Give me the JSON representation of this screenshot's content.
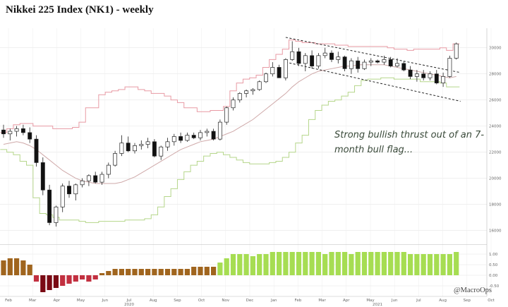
{
  "chart_data": [
    {
      "type": "candlestick",
      "title": "Nikkei 225 Index (NK1) - weekly",
      "annotation": "Strong bullish thrust out of an 7-month bull flag...",
      "x_tick_labels": [
        "Feb",
        "Mar",
        "Apr",
        "May",
        "Jun",
        "Jul",
        "Aug",
        "Sep",
        "Oct",
        "Nov",
        "Dec",
        "Jan",
        "Feb",
        "Mar",
        "Apr",
        "May",
        "Jun",
        "Jul",
        "Aug",
        "Sep",
        "Oct"
      ],
      "year_labels": [
        "2020",
        "2021"
      ],
      "y_tick_labels": [
        "30000",
        "28000",
        "26000",
        "24000",
        "22000",
        "20000",
        "18000",
        "16000"
      ],
      "ylim": [
        15000,
        31500
      ],
      "grid": true,
      "ohlc": [
        [
          23700,
          24100,
          23100,
          23400
        ],
        [
          23400,
          23800,
          22900,
          23600
        ],
        [
          23600,
          24000,
          23200,
          23800
        ],
        [
          23800,
          24100,
          23300,
          23500
        ],
        [
          23500,
          23900,
          22700,
          23000
        ],
        [
          23000,
          23300,
          20900,
          21200
        ],
        [
          21200,
          21600,
          18700,
          19100
        ],
        [
          19100,
          19500,
          16400,
          16600
        ],
        [
          16600,
          17900,
          16300,
          17800
        ],
        [
          17800,
          19600,
          17400,
          19400
        ],
        [
          19400,
          19800,
          18500,
          18800
        ],
        [
          18800,
          19600,
          18300,
          19500
        ],
        [
          19500,
          20000,
          19300,
          19800
        ],
        [
          19800,
          20300,
          19400,
          20200
        ],
        [
          20200,
          20500,
          19600,
          19700
        ],
        [
          19700,
          20500,
          19500,
          20300
        ],
        [
          20300,
          21200,
          20000,
          21000
        ],
        [
          21000,
          22100,
          20900,
          21900
        ],
        [
          21900,
          23300,
          21700,
          22700
        ],
        [
          22700,
          23200,
          22000,
          22100
        ],
        [
          22100,
          22700,
          21900,
          22500
        ],
        [
          22500,
          22900,
          22200,
          22600
        ],
        [
          22600,
          23100,
          22300,
          22800
        ],
        [
          22800,
          23000,
          21600,
          21700
        ],
        [
          21700,
          22500,
          21400,
          22400
        ],
        [
          22400,
          23100,
          22100,
          22800
        ],
        [
          22800,
          23400,
          22500,
          23200
        ],
        [
          23200,
          23500,
          22700,
          22900
        ],
        [
          22900,
          23500,
          22800,
          23300
        ],
        [
          23300,
          23500,
          23000,
          23100
        ],
        [
          23100,
          23700,
          22900,
          23500
        ],
        [
          23500,
          23800,
          23200,
          23600
        ],
        [
          23600,
          23800,
          22900,
          23000
        ],
        [
          23000,
          24500,
          22900,
          24300
        ],
        [
          24300,
          25500,
          24100,
          25400
        ],
        [
          25400,
          26200,
          25200,
          26000
        ],
        [
          26000,
          26600,
          25800,
          26500
        ],
        [
          26500,
          26800,
          26200,
          26700
        ],
        [
          26700,
          26900,
          26400,
          26800
        ],
        [
          26800,
          27500,
          26700,
          27400
        ],
        [
          27400,
          28100,
          27300,
          28000
        ],
        [
          28000,
          28900,
          27800,
          28500
        ],
        [
          28500,
          28700,
          27700,
          27700
        ],
        [
          27700,
          29200,
          27500,
          29100
        ],
        [
          29100,
          30500,
          29000,
          29700
        ],
        [
          29700,
          30000,
          28600,
          28800
        ],
        [
          28800,
          29600,
          28200,
          29400
        ],
        [
          29400,
          29800,
          28400,
          28600
        ],
        [
          28600,
          29600,
          28400,
          29400
        ],
        [
          29400,
          30000,
          29200,
          29600
        ],
        [
          29600,
          29800,
          28900,
          29100
        ],
        [
          29100,
          29700,
          28800,
          29300
        ],
        [
          29300,
          29400,
          28200,
          28400
        ],
        [
          28400,
          29200,
          28000,
          29000
        ],
        [
          29000,
          29300,
          28100,
          28400
        ],
        [
          28400,
          29100,
          28300,
          28900
        ],
        [
          28900,
          29200,
          28600,
          29000
        ],
        [
          29000,
          29100,
          28800,
          28900
        ],
        [
          28900,
          29400,
          28700,
          29100
        ],
        [
          29100,
          29300,
          28500,
          28600
        ],
        [
          28600,
          29200,
          28500,
          28800
        ],
        [
          28800,
          29000,
          28200,
          28300
        ],
        [
          28300,
          28600,
          27600,
          27800
        ],
        [
          27800,
          28300,
          27400,
          28000
        ],
        [
          28000,
          28300,
          27500,
          27700
        ],
        [
          27700,
          28200,
          27500,
          28000
        ],
        [
          28000,
          28300,
          27200,
          27300
        ],
        [
          27300,
          28100,
          27000,
          27800
        ],
        [
          27800,
          29400,
          27700,
          29200
        ],
        [
          29200,
          30400,
          29100,
          30300
        ]
      ],
      "series": [
        {
          "name": "upper_band",
          "color": "#e89aa4",
          "values": [
            23500,
            23800,
            24100,
            24200,
            24200,
            24000,
            24000,
            24000,
            23800,
            23800,
            23800,
            23900,
            24300,
            25400,
            25400,
            26400,
            26600,
            26700,
            26800,
            27000,
            27000,
            26800,
            26700,
            26500,
            26500,
            26300,
            26000,
            25800,
            25400,
            25400,
            25100,
            25100,
            25200,
            25200,
            25500,
            26700,
            27300,
            27600,
            27700,
            27900,
            28500,
            29100,
            29500,
            29900,
            30600,
            30500,
            30400,
            30400,
            30300,
            30300,
            30300,
            30200,
            30200,
            30100,
            30100,
            30100,
            30100,
            30100,
            30100,
            30000,
            29900,
            29900,
            29800,
            29900,
            29900,
            29900,
            29900,
            30000,
            29800,
            30300
          ]
        },
        {
          "name": "lower_band",
          "color": "#b5d68a",
          "values": [
            22200,
            22000,
            21800,
            21300,
            21000,
            18500,
            17300,
            17200,
            17000,
            16800,
            16800,
            16800,
            16700,
            16600,
            16600,
            16700,
            16700,
            16700,
            16700,
            16800,
            16800,
            16800,
            16900,
            17200,
            17800,
            18600,
            19200,
            19900,
            20500,
            21000,
            21300,
            21700,
            21900,
            22000,
            21800,
            21600,
            21400,
            21200,
            21100,
            21100,
            21100,
            21200,
            21300,
            21600,
            22000,
            22700,
            23300,
            24500,
            25200,
            25600,
            25900,
            26000,
            26300,
            26600,
            27100,
            27500,
            27600,
            27600,
            27700,
            27700,
            27600,
            27600,
            27600,
            27600,
            27400,
            27400,
            27400,
            27300,
            27000,
            27000
          ]
        },
        {
          "name": "moving_average",
          "color": "#cfa9a9",
          "values": [
            22600,
            22700,
            22800,
            22700,
            22500,
            22200,
            21800,
            21400,
            21000,
            20600,
            20300,
            20000,
            19800,
            19700,
            19600,
            19600,
            19600,
            19600,
            19700,
            19900,
            20100,
            20400,
            20700,
            21000,
            21300,
            21600,
            21900,
            22200,
            22400,
            22600,
            22800,
            22900,
            23000,
            23200,
            23400,
            23600,
            23900,
            24200,
            24500,
            24900,
            25300,
            25700,
            26100,
            26500,
            27000,
            27400,
            27700,
            28000,
            28200,
            28300,
            28400,
            28500,
            28600,
            28600,
            28700,
            28700,
            28700,
            28700,
            28700,
            28600,
            28500,
            28400,
            28300,
            28200,
            28100,
            28000,
            27900,
            27800,
            27700,
            27800
          ]
        },
        {
          "name": "oscillator",
          "values": [
            0.7,
            0.8,
            0.8,
            0.7,
            0.5,
            -0.3,
            -0.8,
            -0.7,
            -0.6,
            -0.5,
            -0.4,
            -0.3,
            -0.2,
            -0.3,
            -0.2,
            0.1,
            0.2,
            0.3,
            0.3,
            0.3,
            0.3,
            0.3,
            0.3,
            0.3,
            0.3,
            0.3,
            0.3,
            0.3,
            0.3,
            0.4,
            0.4,
            0.4,
            0.4,
            0.6,
            0.8,
            1.0,
            1.0,
            1.0,
            0.9,
            1.0,
            1.0,
            1.1,
            1.1,
            1.1,
            1.1,
            1.1,
            1.1,
            1.1,
            1.1,
            1.0,
            1.1,
            1.1,
            1.1,
            1.0,
            1.1,
            1.1,
            1.1,
            1.1,
            1.1,
            1.1,
            1.1,
            1.1,
            1.0,
            1.0,
            1.0,
            1.0,
            1.0,
            1.0,
            1.0,
            1.1
          ]
        }
      ],
      "trendlines": [
        {
          "style": "dashed",
          "from": [
            43,
            30800
          ],
          "to": [
            69,
            28100
          ]
        },
        {
          "style": "dashed",
          "from": [
            43,
            28900
          ],
          "to": [
            69,
            25900
          ]
        }
      ]
    },
    {
      "type": "bar",
      "name": "momentum_oscillator",
      "y_tick_labels": [
        "1.00",
        "0.50",
        "0.00",
        "-0.50"
      ],
      "ylim": [
        -1.0,
        1.4
      ]
    }
  ],
  "watermark": "@MacroOps",
  "colors": {
    "up_fill": "#ffffff",
    "down_fill": "#111111",
    "grid": "#e6e6e6",
    "bar_pos_early": "#a0651e",
    "bar_neg": "#c23040",
    "bar_neg_dark": "#7a0a14",
    "bar_pos_late": "#a6dd52"
  }
}
